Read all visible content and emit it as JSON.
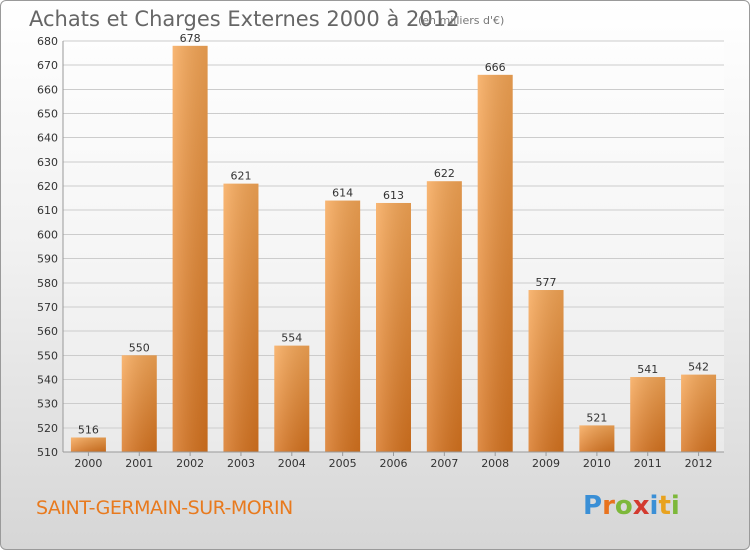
{
  "header": {
    "title": "Achats et Charges Externes 2000 à 2012",
    "subtitle": "(en milliers d'€)"
  },
  "footer": {
    "commune": "SAINT-GERMAIN-SUR-MORIN",
    "logo_text": "Proxiti",
    "logo_letters": [
      {
        "ch": "P",
        "color": "#3a8fd6"
      },
      {
        "ch": "r",
        "color": "#e8731e"
      },
      {
        "ch": "o",
        "color": "#7db83a"
      },
      {
        "ch": "x",
        "color": "#d33a2f"
      },
      {
        "ch": "i",
        "color": "#3a8fd6"
      },
      {
        "ch": "t",
        "color": "#e8a21e"
      },
      {
        "ch": "i",
        "color": "#7db83a"
      }
    ]
  },
  "colors": {
    "bar_light": "#f7a756",
    "bar_dark": "#d8741f",
    "grid": "#cccccc",
    "text": "#333333",
    "accent": "#e87a1e"
  },
  "chart_data": {
    "type": "bar",
    "title": "Achats et Charges Externes 2000 à 2012",
    "subtitle": "(en milliers d'€)",
    "categories": [
      "2000",
      "2001",
      "2002",
      "2003",
      "2004",
      "2005",
      "2006",
      "2007",
      "2008",
      "2009",
      "2010",
      "2011",
      "2012"
    ],
    "values": [
      516,
      550,
      678,
      621,
      554,
      614,
      613,
      622,
      666,
      577,
      521,
      541,
      542
    ],
    "ylim": [
      510,
      680
    ],
    "yticks": [
      510,
      520,
      530,
      540,
      550,
      560,
      570,
      580,
      590,
      600,
      610,
      620,
      630,
      640,
      650,
      660,
      670,
      680
    ],
    "grid": true,
    "data_labels": true
  }
}
